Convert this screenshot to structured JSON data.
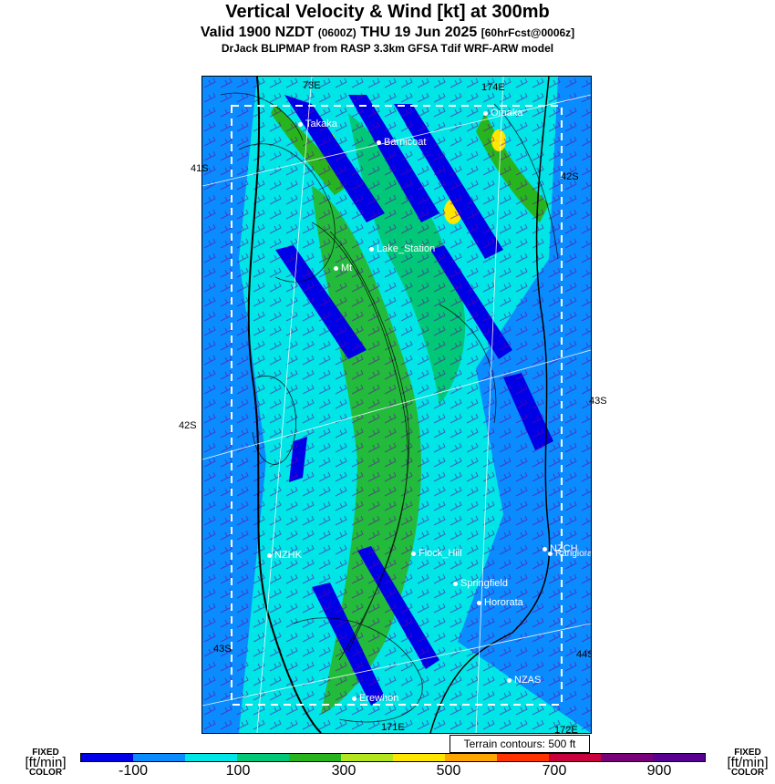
{
  "title": "Vertical Velocity & Wind [kt] at 300mb",
  "subtitle_main": "Valid 1900 NZDT",
  "subtitle_z": "(0600Z)",
  "subtitle_date": "THU 19 Jun 2025",
  "subtitle_fcst": "[60hrFcst@0006z]",
  "model_line": "DrJack BLIPMAP from RASP 3.3km GFSA Tdif WRF-ARW model",
  "terrain_note": "Terrain contours: 500 ft",
  "legend": {
    "left_top": "FIXED",
    "left_mid": "[ft/min]",
    "left_bot": "COLOR",
    "right_top": "FIXED",
    "right_mid": "[ft/min]",
    "right_bot": "COLOR",
    "ticks": [
      "-100",
      "100",
      "300",
      "500",
      "700",
      "900"
    ],
    "colors": [
      "#0000e6",
      "#0a8cff",
      "#00e5e5",
      "#00c878",
      "#28b41e",
      "#b4e61e",
      "#ffe600",
      "#ffa500",
      "#ff3200",
      "#c8003c",
      "#780078",
      "#5a0090"
    ]
  },
  "grid_labels": {
    "lat_left_1": "41S",
    "lat_left_2": "42S",
    "lat_left_3": "43S",
    "lat_right_1": "42S",
    "lat_right_2": "43S",
    "lat_right_3": "44S",
    "lon_top_1": "73E",
    "lon_top_2": "174E",
    "lon_bottom_1": "171E",
    "lon_bottom_2": "172E"
  },
  "places": {
    "takaka": "Takaka",
    "omaka": "Omaka",
    "barnicoat": "Barnicoat",
    "lake_station": "Lake_Station",
    "mt": "Mt",
    "nzhk": "NZHK",
    "flock_hill": "Flock_Hill",
    "nzch": "NZCH",
    "rangiora": "Rangiora",
    "springfield": "Springfield",
    "hororata": "Hororata",
    "nzas": "NZAS",
    "erewhon": "Erewhon"
  }
}
